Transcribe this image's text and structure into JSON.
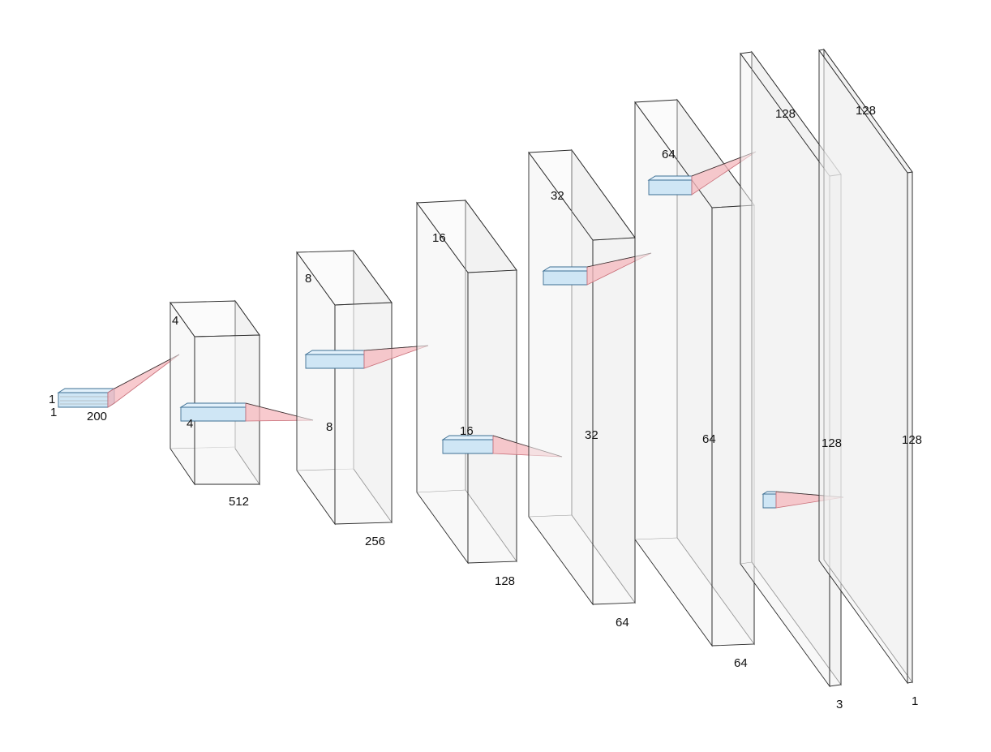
{
  "colors": {
    "layer_fill": "#f2f2f2",
    "layer_stroke": "#2a2a2a",
    "kernel_fill": "#cfe6f5",
    "projection_fill": "#f6b8bd"
  },
  "layers": [
    {
      "id": "input",
      "height": "1",
      "width": "1",
      "depth": "200"
    },
    {
      "id": "layer-1",
      "height": "4",
      "width": "4",
      "depth": "512"
    },
    {
      "id": "layer-2",
      "height": "8",
      "width": "8",
      "depth": "256"
    },
    {
      "id": "layer-3",
      "height": "16",
      "width": "16",
      "depth": "128"
    },
    {
      "id": "layer-4",
      "height": "32",
      "width": "32",
      "depth": "64"
    },
    {
      "id": "layer-5",
      "height": "64",
      "width": "64",
      "depth": "64"
    },
    {
      "id": "layer-6",
      "height": "128",
      "width": "128",
      "depth": "3"
    },
    {
      "id": "output",
      "height": "128",
      "width": "128",
      "depth": "1"
    }
  ]
}
